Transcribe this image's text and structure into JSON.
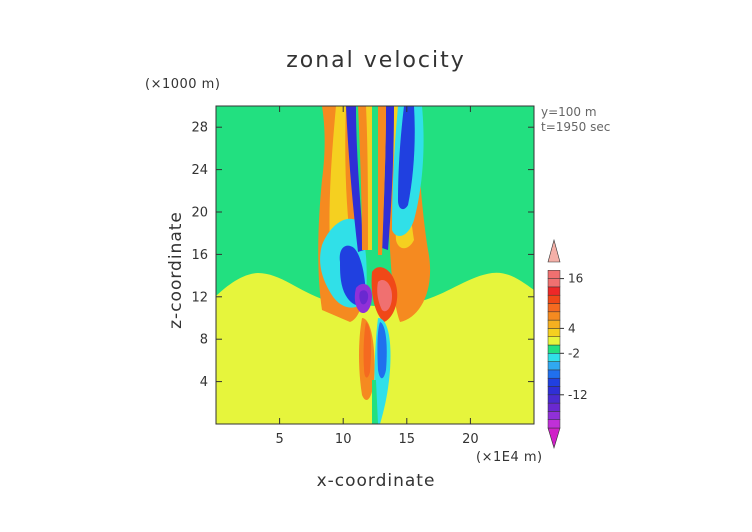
{
  "chart_data": {
    "type": "heatmap",
    "title": "zonal velocity",
    "xlabel": "x-coordinate",
    "ylabel": "z-coordinate",
    "x_unit": "(×1E4 m)",
    "y_unit": "(×1000 m)",
    "info": [
      "y=100 m",
      "t=1950 sec"
    ],
    "xlim": [
      0,
      25
    ],
    "ylim": [
      0,
      30
    ],
    "xticks": [
      5,
      10,
      15,
      20
    ],
    "yticks": [
      4,
      8,
      12,
      16,
      20,
      24,
      28
    ],
    "colorbar": {
      "labels": [
        16,
        4,
        -2,
        -12
      ],
      "levels": [
        -20,
        -18,
        -16,
        -14,
        -12,
        -10,
        -8,
        -6,
        -4,
        -2,
        0,
        2,
        4,
        6,
        8,
        10,
        12,
        14,
        16,
        18
      ],
      "colors": {
        "below_-18": "#d020c8",
        "-18": "#c030d8",
        "-16": "#9030d8",
        "-14": "#6a28d0",
        "-12": "#4a2bd0",
        "-10": "#2f2fd6",
        "-8": "#2040e0",
        "-6": "#2070ee",
        "-4": "#30a8f0",
        "-2": "#30e0e8",
        "0": "#22e080",
        "2": "#e6f53c",
        "4": "#f5d020",
        "6": "#f5b020",
        "8": "#f58a20",
        "10": "#f56a20",
        "12": "#f04818",
        "14": "#ee2828",
        "16": "#f07070",
        "above_18": "#f4b0a8"
      }
    }
  }
}
